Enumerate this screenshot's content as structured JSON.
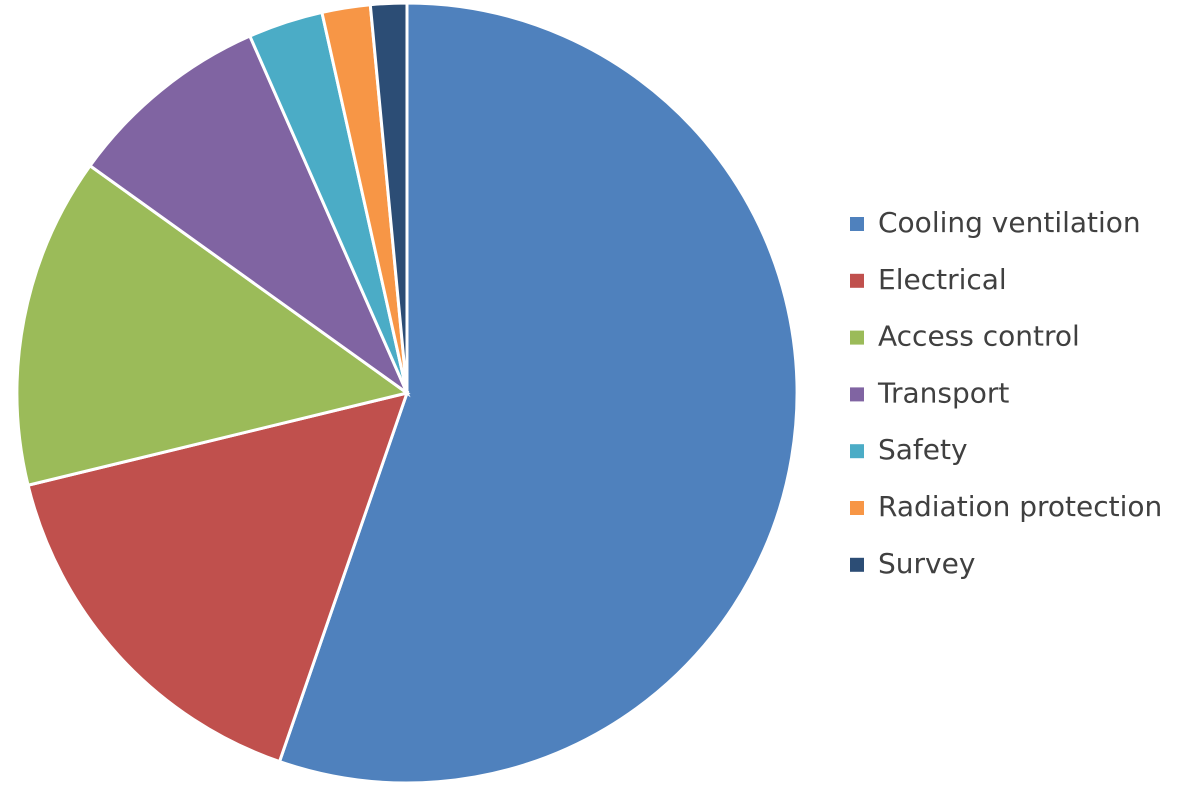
{
  "chart_data": {
    "type": "pie",
    "categories": [
      "Cooling ventilation",
      "Electrical",
      "Access control",
      "Transport",
      "Safety",
      "Radiation protection",
      "Survey"
    ],
    "values": [
      55.3,
      15.9,
      13.7,
      8.5,
      3.1,
      2.0,
      1.5
    ],
    "colors": [
      "#4f81bd",
      "#c0504d",
      "#9bbb59",
      "#8064a2",
      "#4bacc6",
      "#f79646",
      "#2c4d75"
    ],
    "legend": "right"
  }
}
